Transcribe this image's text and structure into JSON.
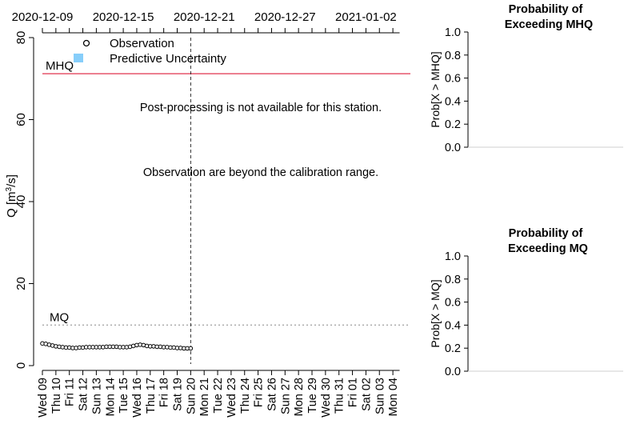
{
  "chart_data": [
    {
      "type": "line",
      "x_top_ticks": [
        "2020-12-09",
        "2020-12-15",
        "2020-12-21",
        "2020-12-27",
        "2021-01-02"
      ],
      "x_bottom_ticks": [
        "Wed 09",
        "Thu 10",
        "Fri 11",
        "Sat 12",
        "Sun 13",
        "Mon 14",
        "Tue 15",
        "Wed 16",
        "Thu 17",
        "Fri 18",
        "Sat 19",
        "Sun 20",
        "Mon 21",
        "Tue 22",
        "Wed 23",
        "Thu 24",
        "Fri 25",
        "Sat 26",
        "Sun 27",
        "Mon 28",
        "Tue 29",
        "Wed 30",
        "Thu 31",
        "Fri 01",
        "Sat 02",
        "Sun 03",
        "Mon 04"
      ],
      "xlim": [
        0,
        26.5
      ],
      "ylabel": "Q [m³/s]",
      "ylim": [
        0,
        80
      ],
      "y_ticks": [
        0,
        20,
        40,
        60,
        80
      ],
      "forecast_start_x": 11,
      "legend": {
        "position": "top-left",
        "entries": [
          {
            "label": "Observation",
            "marker": "circle"
          },
          {
            "label": "Predictive Uncertainty",
            "marker": "square",
            "color": "#87cefa"
          }
        ]
      },
      "reference_lines": [
        {
          "label": "MHQ",
          "value": 71.2,
          "color": "#e0334f",
          "style": "solid"
        },
        {
          "label": "MQ",
          "value": 9.9,
          "color": "#888888",
          "style": "dotted"
        }
      ],
      "annotations": [
        "Post-processing is not available for this station.",
        "Observation are beyond the calibration range."
      ],
      "series": [
        {
          "name": "Observation",
          "x": [
            0,
            0.25,
            0.5,
            0.75,
            1,
            1.25,
            1.5,
            1.75,
            2,
            2.25,
            2.5,
            2.75,
            3,
            3.25,
            3.5,
            3.75,
            4,
            4.25,
            4.5,
            4.75,
            5,
            5.25,
            5.5,
            5.75,
            6,
            6.25,
            6.5,
            6.75,
            7,
            7.25,
            7.5,
            7.75,
            8,
            8.25,
            8.5,
            8.75,
            9,
            9.25,
            9.5,
            9.75,
            10,
            10.25,
            10.5,
            10.75,
            11
          ],
          "values": [
            5.4,
            5.3,
            5.1,
            4.9,
            4.7,
            4.6,
            4.5,
            4.4,
            4.4,
            4.3,
            4.3,
            4.4,
            4.4,
            4.5,
            4.5,
            4.5,
            4.5,
            4.5,
            4.5,
            4.6,
            4.6,
            4.6,
            4.6,
            4.5,
            4.5,
            4.5,
            4.6,
            4.8,
            5.0,
            5.1,
            5.0,
            4.8,
            4.7,
            4.7,
            4.6,
            4.6,
            4.5,
            4.5,
            4.4,
            4.4,
            4.3,
            4.3,
            4.2,
            4.2,
            4.2
          ]
        }
      ]
    },
    {
      "type": "line",
      "title": "Probability of\nExceeding MHQ",
      "title_lines": [
        "Probability of",
        "Exceeding MHQ"
      ],
      "ylabel": "Prob[X > MHQ]",
      "ylim": [
        0,
        1
      ],
      "y_ticks": [
        "0.0",
        "0.2",
        "0.4",
        "0.6",
        "0.8",
        "1.0"
      ],
      "series": []
    },
    {
      "type": "line",
      "title": "Probability of\nExceeding MQ",
      "title_lines": [
        "Probability of",
        "Exceeding MQ"
      ],
      "ylabel": "Prob[X > MQ]",
      "ylim": [
        0,
        1
      ],
      "y_ticks": [
        "0.0",
        "0.2",
        "0.4",
        "0.6",
        "0.8",
        "1.0"
      ],
      "series": []
    }
  ]
}
